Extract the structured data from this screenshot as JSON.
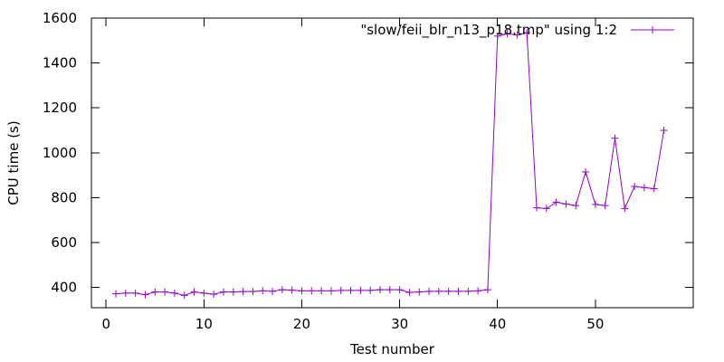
{
  "chart_data": {
    "type": "line",
    "xlabel": "Test number",
    "ylabel": "CPU time (s)",
    "xlim": [
      -1.5,
      60
    ],
    "ylim": [
      310,
      1600
    ],
    "x_ticks": [
      0,
      10,
      20,
      30,
      40,
      50
    ],
    "y_ticks": [
      400,
      600,
      800,
      1000,
      1200,
      1400,
      1600
    ],
    "grid": false,
    "legend_position": "top-right",
    "series": [
      {
        "name": "\"slow/feii_blr_n13_p18.tmp\" using 1:2",
        "color": "#9400d3",
        "marker": "plus",
        "x": [
          1,
          2,
          3,
          4,
          5,
          6,
          7,
          8,
          9,
          10,
          11,
          12,
          13,
          14,
          15,
          16,
          17,
          18,
          19,
          20,
          21,
          22,
          23,
          24,
          25,
          26,
          27,
          28,
          29,
          30,
          31,
          32,
          33,
          34,
          35,
          36,
          37,
          38,
          39,
          40,
          41,
          42,
          43,
          44,
          45,
          46,
          47,
          48,
          49,
          50,
          51,
          52,
          53,
          54,
          55,
          56,
          57
        ],
        "y": [
          372,
          375,
          375,
          368,
          380,
          380,
          375,
          365,
          380,
          375,
          370,
          380,
          380,
          382,
          382,
          385,
          383,
          390,
          388,
          385,
          385,
          385,
          385,
          387,
          387,
          387,
          387,
          390,
          390,
          390,
          378,
          380,
          383,
          383,
          383,
          383,
          383,
          385,
          390,
          1520,
          1530,
          1525,
          1535,
          755,
          752,
          780,
          772,
          765,
          915,
          770,
          765,
          1065,
          752,
          850,
          845,
          840,
          1100
        ]
      }
    ]
  }
}
